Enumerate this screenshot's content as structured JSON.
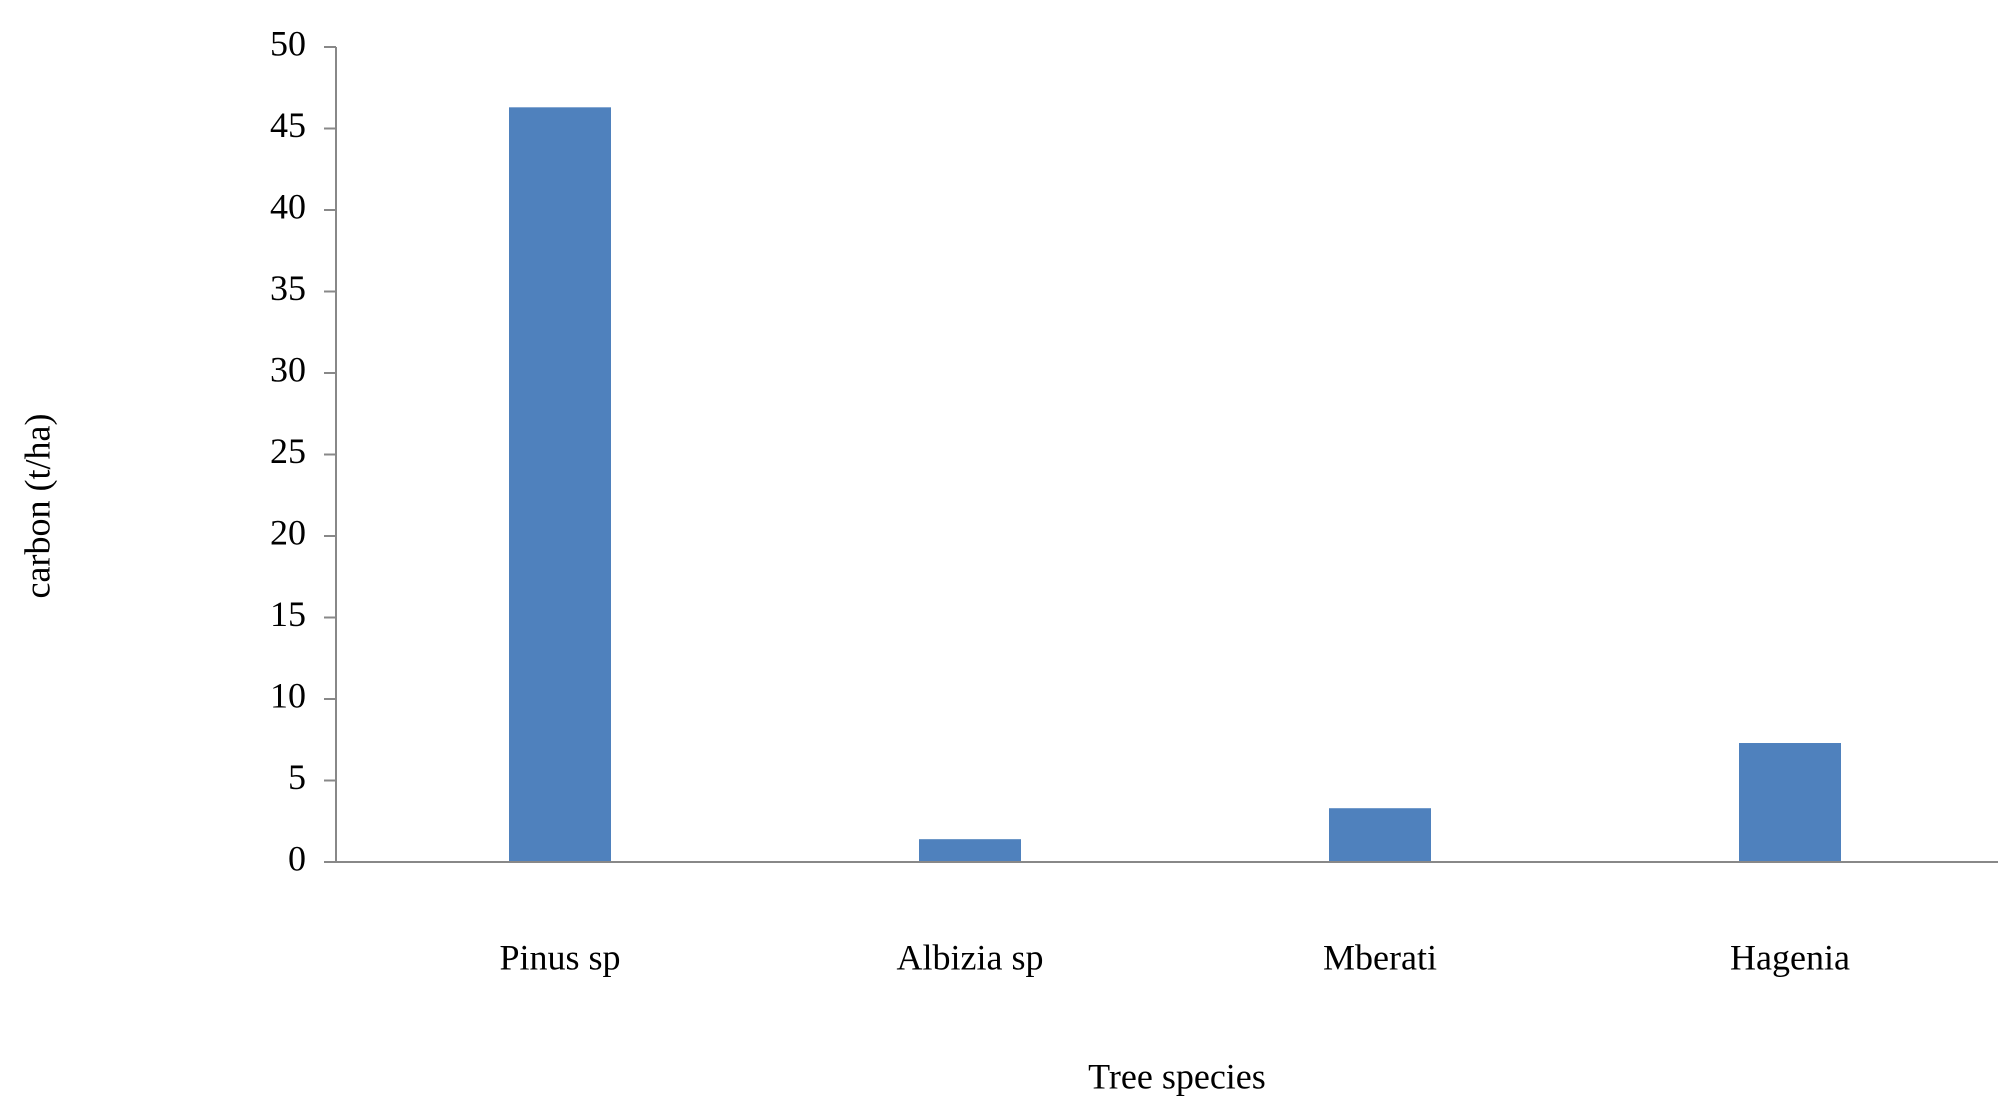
{
  "chart_data": {
    "type": "bar",
    "categories": [
      "Pinus sp",
      "Albizia sp",
      "Mberati",
      "Hagenia"
    ],
    "values": [
      46.3,
      1.4,
      3.3,
      7.3
    ],
    "color": "#4f81bd",
    "xlabel": "Tree species",
    "ylabel": "carbon (t/ha)",
    "ylim": [
      0,
      50
    ],
    "yticks": [
      0,
      5,
      10,
      15,
      20,
      25,
      30,
      35,
      40,
      45,
      50
    ],
    "grid": false
  }
}
